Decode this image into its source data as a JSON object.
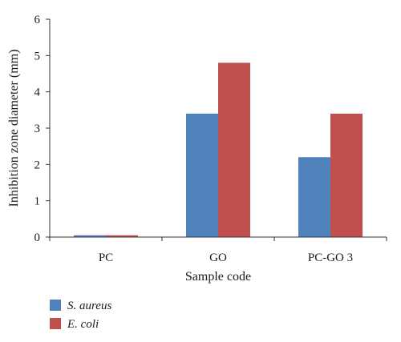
{
  "chart_data": {
    "type": "bar",
    "categories": [
      "PC",
      "GO",
      "PC-GO 3"
    ],
    "series": [
      {
        "name": "S. aureus",
        "color": "#4F81BD",
        "values": [
          0.05,
          3.4,
          2.2
        ]
      },
      {
        "name": "E. coli",
        "color": "#C0504D",
        "values": [
          0.05,
          4.8,
          3.4
        ]
      }
    ],
    "xlabel": "Sample code",
    "ylabel": "Inhibition zone diameter (mm)",
    "ylim": [
      0,
      6
    ],
    "yticks": [
      0,
      1,
      2,
      3,
      4,
      5,
      6
    ],
    "grid": false,
    "legend_position": "bottom-left"
  }
}
